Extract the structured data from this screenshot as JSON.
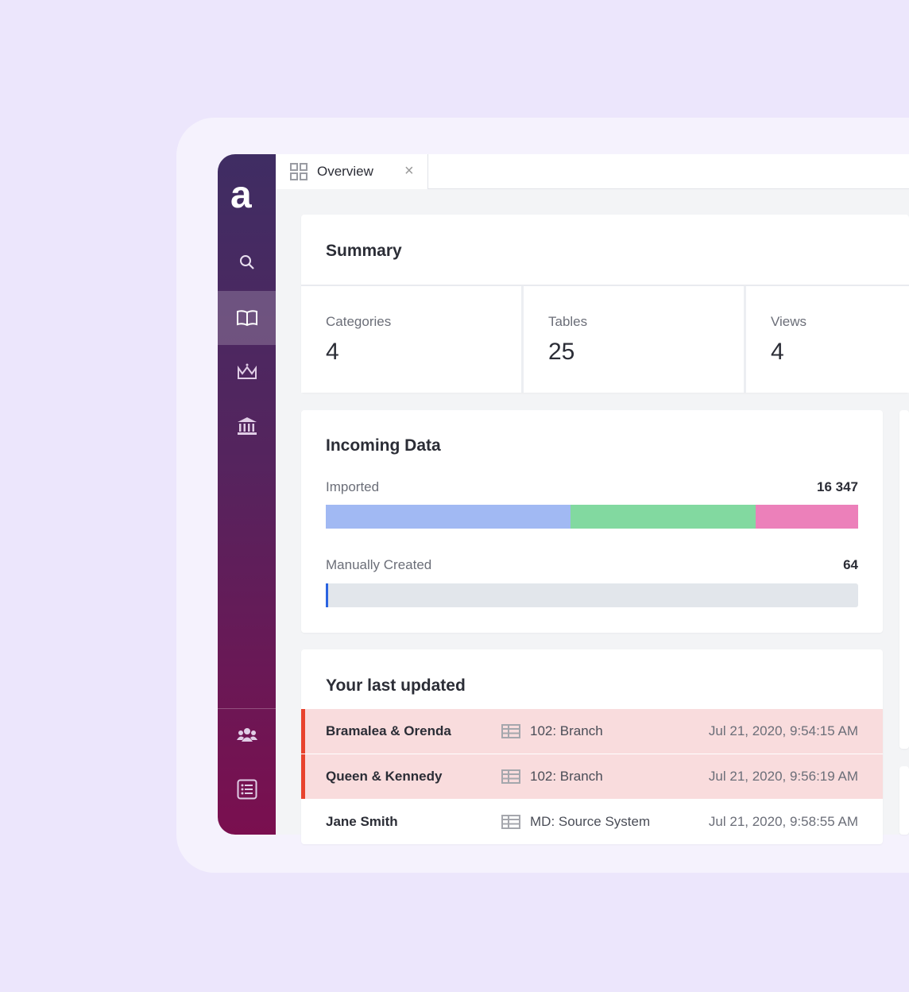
{
  "sidebar": {
    "logo": "a",
    "items": [
      {
        "icon": "search-icon"
      },
      {
        "icon": "book-icon",
        "active": true
      },
      {
        "icon": "crown-icon"
      },
      {
        "icon": "bank-icon"
      },
      {
        "icon": "users-icon"
      },
      {
        "icon": "list-icon"
      }
    ]
  },
  "tabs": [
    {
      "label": "Overview",
      "icon": "grid-icon"
    }
  ],
  "summary": {
    "title": "Summary",
    "stats": [
      {
        "label": "Categories",
        "value": "4"
      },
      {
        "label": "Tables",
        "value": "25"
      },
      {
        "label": "Views",
        "value": "4"
      }
    ]
  },
  "incoming": {
    "title": "Incoming Data",
    "imported": {
      "label": "Imported",
      "value": "16 347",
      "segments": [
        {
          "fraction": 0.46,
          "color": "#a1b9f3"
        },
        {
          "fraction": 0.348,
          "color": "#82d9a0"
        },
        {
          "fraction": 0.192,
          "color": "#ec80ba"
        }
      ]
    },
    "manual": {
      "label": "Manually Created",
      "value": "64",
      "fraction": 0.004,
      "color": "#2a63e0"
    }
  },
  "last_updated": {
    "title": "Your last updated",
    "rows": [
      {
        "name": "Bramalea & Orenda",
        "table": "102: Branch",
        "date": "Jul 21, 2020, 9:54:15 AM",
        "highlight": true
      },
      {
        "name": "Queen & Kennedy",
        "table": "102: Branch",
        "date": "Jul 21, 2020, 9:56:19 AM",
        "highlight": true
      },
      {
        "name": "Jane Smith",
        "table": "MD: Source System",
        "date": "Jul 21, 2020, 9:58:55 AM",
        "highlight": false
      }
    ]
  },
  "colors": {
    "accent": "#e8432e",
    "sidebar_top": "#3f2d63",
    "sidebar_bottom": "#7a0f4f"
  }
}
